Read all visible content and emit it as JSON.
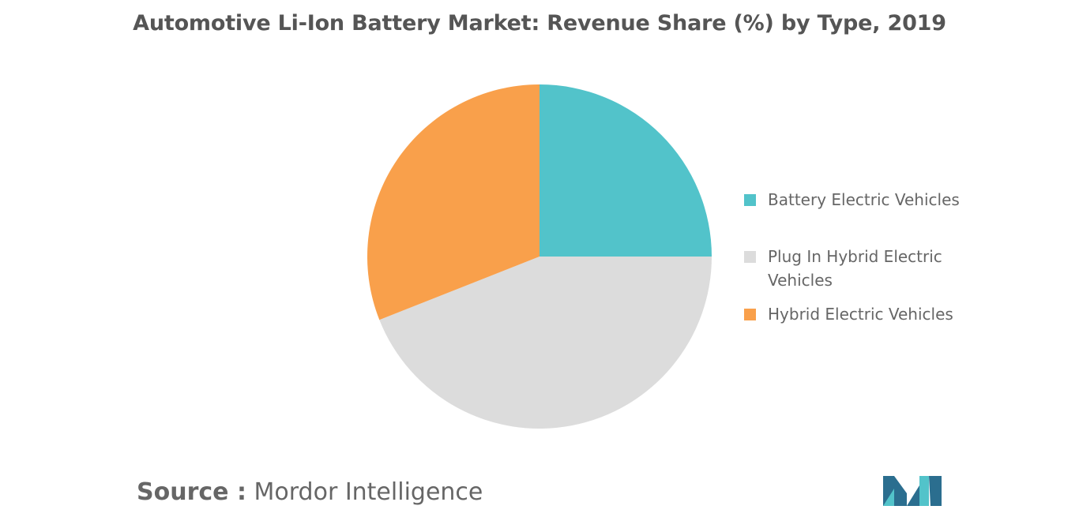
{
  "chart_data": {
    "type": "pie",
    "title": "Automotive Li-Ion Battery Market: Revenue Share (%) by Type, 2019",
    "slices": [
      {
        "label": "Battery Electric Vehicles",
        "value": 25,
        "color": "#52C3CA"
      },
      {
        "label": "Plug In Hybrid Electric Vehicles",
        "value": 44,
        "color": "#DCDCDC"
      },
      {
        "label": "Hybrid Electric Vehicles",
        "value": 31,
        "color": "#F9A04B"
      }
    ],
    "legend_position": "right"
  },
  "legend": {
    "items": [
      {
        "label": "Battery Electric Vehicles",
        "color": "#52C3CA"
      },
      {
        "label": "Plug In Hybrid Electric Vehicles",
        "color": "#DCDCDC"
      },
      {
        "label": "Hybrid Electric Vehicles",
        "color": "#F9A04B"
      }
    ]
  },
  "source": {
    "label": "Source :",
    "text": "Mordor Intelligence"
  },
  "logo": {
    "name": "mordor-intelligence-logo",
    "color_dark": "#2B6E8F",
    "color_light": "#52C3CA"
  }
}
